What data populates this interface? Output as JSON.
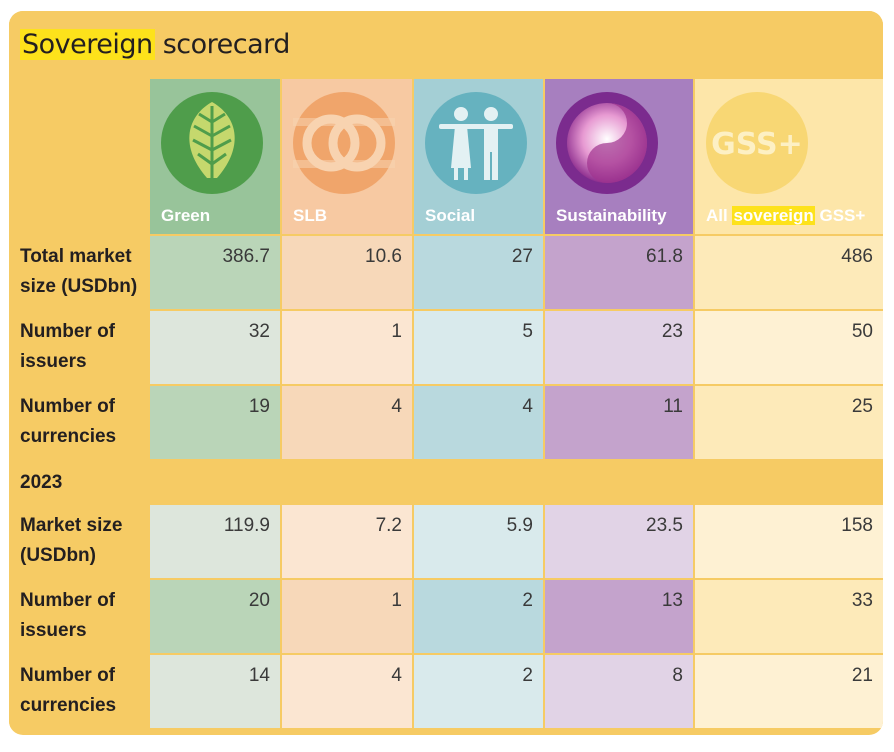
{
  "title": {
    "pre": "",
    "highlight": "Sovereign",
    "post": " scorecard"
  },
  "columns": [
    {
      "key": "green",
      "label": "Green",
      "icon": "leaf-icon"
    },
    {
      "key": "slb",
      "label": "SLB",
      "icon": "linked-rings-icon"
    },
    {
      "key": "social",
      "label": "Social",
      "icon": "people-icon"
    },
    {
      "key": "sustainability",
      "label": "Sustainability",
      "icon": "swirl-icon"
    },
    {
      "key": "all",
      "label_pre": "All ",
      "label_highlight": "sovereign",
      "label_post": " GSS+",
      "icon": "gss-plus-icon",
      "icon_text": "GSS+"
    }
  ],
  "colors": {
    "header_bg": "#f6cb64",
    "green_dark": "#98c49a",
    "green_light": "#dde6dc",
    "green_mid": "#bad5b8",
    "slb_dark": "#f7c9a2",
    "slb_light": "#fbe6d2",
    "slb_mid": "#f7d8b9",
    "social_dark": "#a4cfd5",
    "social_light": "#d9eaec",
    "social_mid": "#b9d9de",
    "sus_dark": "#a77fbf",
    "sus_light": "#e1d3e6",
    "sus_mid": "#c4a3cc",
    "all_dark": "#fde6a9",
    "all_light": "#fef1d3",
    "all_mid": "#fdeab9"
  },
  "section1": {
    "rows": [
      {
        "label_lines": [
          "Total market",
          "size (USDbn)"
        ],
        "values": [
          "386.7",
          "10.6",
          "27",
          "61.8",
          "486"
        ]
      },
      {
        "label_lines": [
          "Number of",
          "issuers"
        ],
        "values": [
          "32",
          "1",
          "5",
          "23",
          "50"
        ]
      },
      {
        "label_lines": [
          "Number of",
          "currencies"
        ],
        "values": [
          "19",
          "4",
          "4",
          "11",
          "25"
        ]
      }
    ]
  },
  "section2": {
    "heading": "2023",
    "rows": [
      {
        "label_lines": [
          "Market size",
          "(USDbn)"
        ],
        "values": [
          "119.9",
          "7.2",
          "5.9",
          "23.5",
          "158"
        ]
      },
      {
        "label_lines": [
          "Number of",
          "issuers"
        ],
        "values": [
          "20",
          "1",
          "2",
          "13",
          "33"
        ]
      },
      {
        "label_lines": [
          "Number of",
          "currencies"
        ],
        "values": [
          "14",
          "4",
          "2",
          "8",
          "21"
        ]
      }
    ]
  }
}
